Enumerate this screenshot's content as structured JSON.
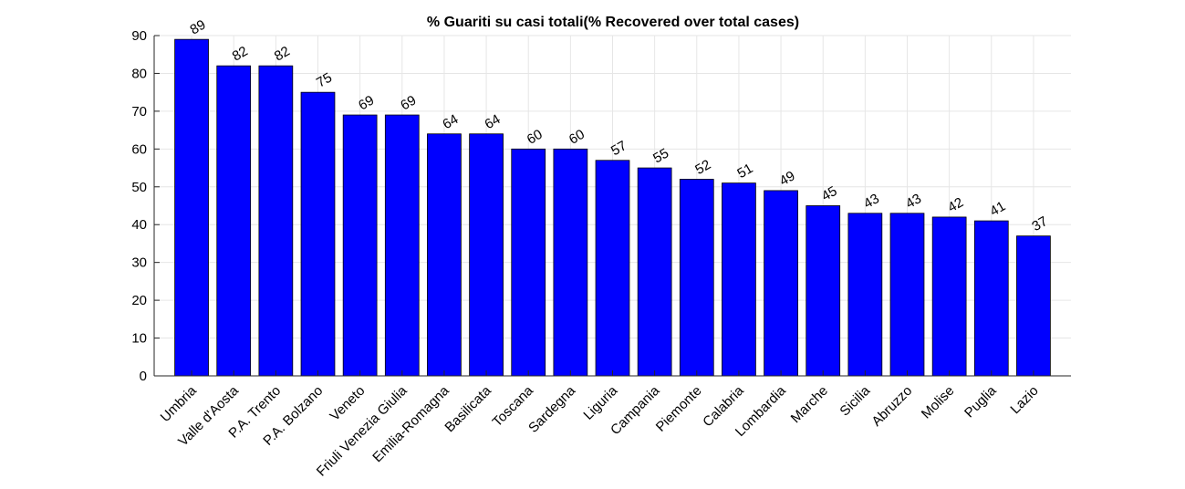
{
  "chart_data": {
    "type": "bar",
    "title": "% Guariti su casi totali(% Recovered over total cases)",
    "xlabel": "",
    "ylabel": "",
    "categories": [
      "Umbria",
      "Valle d'Aosta",
      "P.A. Trento",
      "P.A. Bolzano",
      "Veneto",
      "Friuli Venezia Giulia",
      "Emilia-Romagna",
      "Basilicata",
      "Toscana",
      "Sardegna",
      "Liguria",
      "Campania",
      "Piemonte",
      "Calabria",
      "Lombardia",
      "Marche",
      "Sicilia",
      "Abruzzo",
      "Molise",
      "Puglia",
      "Lazio"
    ],
    "values": [
      89,
      82,
      82,
      75,
      69,
      69,
      64,
      64,
      60,
      60,
      57,
      55,
      52,
      51,
      49,
      45,
      43,
      43,
      42,
      41,
      37
    ],
    "data_labels": [
      "89",
      "82",
      "82",
      "75",
      "69",
      "69",
      "64",
      "64",
      "60",
      "60",
      "57",
      "55",
      "52",
      "51",
      "49",
      "45",
      "43",
      "43",
      "42",
      "41",
      "37"
    ],
    "ylim": [
      0,
      90
    ],
    "yticks": [
      0,
      10,
      20,
      30,
      40,
      50,
      60,
      70,
      80,
      90
    ],
    "grid": true,
    "bar_color": "#0000ff"
  }
}
